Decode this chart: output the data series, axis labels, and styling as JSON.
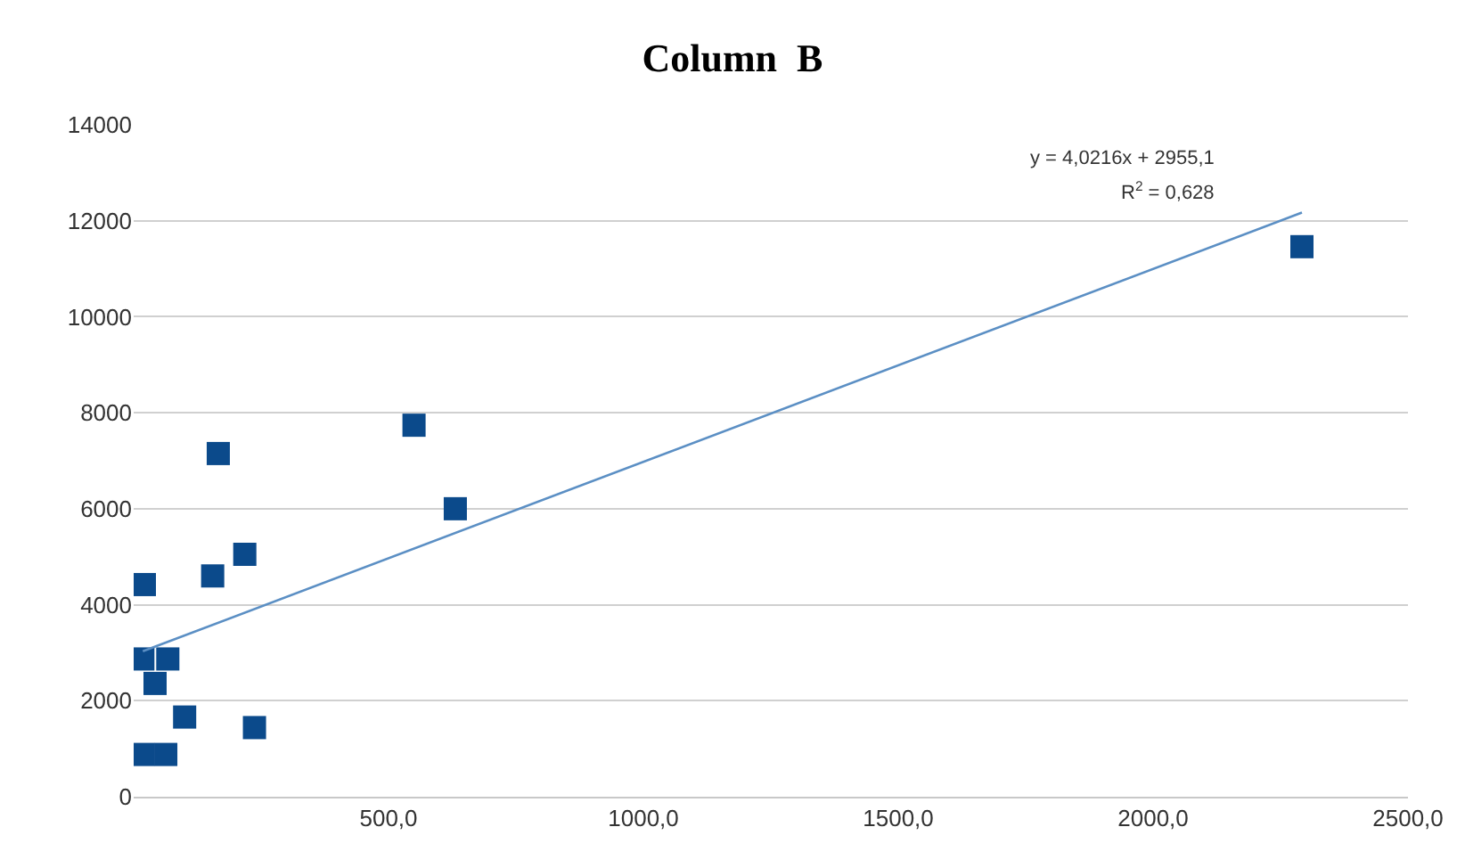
{
  "chart_data": {
    "type": "scatter",
    "title": "Column  B",
    "series": [
      {
        "color": "#0b4a8b",
        "marker": "square",
        "x": [
          21,
          166,
          155,
          218,
          550,
          631,
          18,
          67,
          42,
          100,
          237,
          18,
          63,
          2292
        ],
        "values": [
          4420,
          7150,
          4600,
          5050,
          7740,
          6000,
          2870,
          2870,
          2360,
          1660,
          1440,
          880,
          880,
          11460
        ]
      },
      {
        "type": "line",
        "color": "#5b8fc4",
        "marker": "none",
        "line_style": "solid",
        "x": [
          18,
          2292
        ],
        "values": [
          3030,
          12170
        ]
      }
    ],
    "annotations": [
      "y = 4,0216x + 2955,1",
      "R$^{2}$ = 0,628"
    ],
    "xlim": [
      0,
      2500
    ],
    "xticks": [
      {
        "value": 500,
        "label": "500,0"
      },
      {
        "value": 1000,
        "label": "1000,0"
      },
      {
        "value": 1500,
        "label": "1500,0"
      },
      {
        "value": 2000,
        "label": "2000,0"
      },
      {
        "value": 2500,
        "label": "2500,0"
      }
    ],
    "ylim": [
      0,
      14000
    ],
    "yticks": [
      0,
      2000,
      4000,
      6000,
      8000,
      10000,
      12000,
      14000
    ],
    "grid": "y",
    "legend": false
  }
}
